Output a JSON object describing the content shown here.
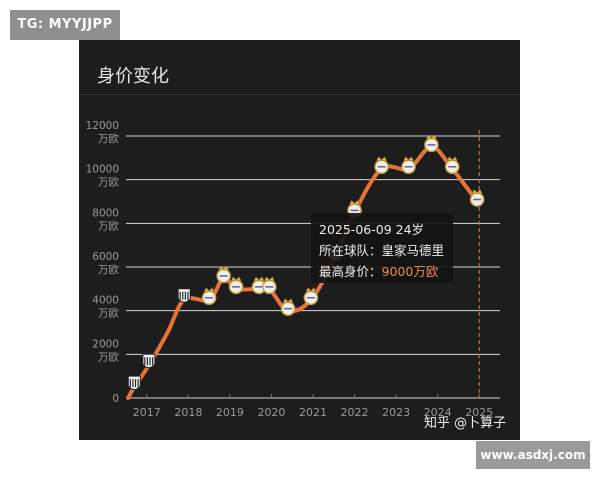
{
  "badges": {
    "tg": "TG: MYYJJPP",
    "site": "www.asdxj.com"
  },
  "panel": {
    "title": "身价变化",
    "watermark": "知乎 @卜算子"
  },
  "colors": {
    "background": "#1d1d1d",
    "line": "#e8733a",
    "grid": "#d8d8d8",
    "marker_line": "#d9795a",
    "accent_text": "#f08a4b"
  },
  "chart_data": {
    "type": "line",
    "unit": "万欧",
    "ylim": [
      0,
      12000
    ],
    "y_ticks": [
      {
        "value": 0,
        "label": "0",
        "unit": ""
      },
      {
        "value": 2000,
        "label": "2000",
        "unit": "万欧"
      },
      {
        "value": 4000,
        "label": "4000",
        "unit": "万欧"
      },
      {
        "value": 6000,
        "label": "6000",
        "unit": "万欧"
      },
      {
        "value": 8000,
        "label": "8000",
        "unit": "万欧"
      },
      {
        "value": 10000,
        "label": "10000",
        "unit": "万欧"
      },
      {
        "value": 12000,
        "label": "12000",
        "unit": "万欧"
      }
    ],
    "x_labels": [
      "2017",
      "2018",
      "2019",
      "2020",
      "2021",
      "2022",
      "2023",
      "2024",
      "2025"
    ],
    "xlim": [
      2016.5,
      2025.5
    ],
    "grid": true,
    "series": [
      {
        "points": [
          {
            "x": 2016.55,
            "y": 0
          },
          {
            "x": 2016.7,
            "y": 500,
            "club": "santos"
          },
          {
            "x": 2017.05,
            "y": 1500,
            "club": "santos"
          },
          {
            "x": 2017.5,
            "y": 3000
          },
          {
            "x": 2017.9,
            "y": 4500,
            "club": "santos"
          },
          {
            "x": 2018.5,
            "y": 4500,
            "club": "real-madrid"
          },
          {
            "x": 2018.85,
            "y": 5500,
            "club": "real-madrid"
          },
          {
            "x": 2019.15,
            "y": 5000,
            "club": "real-madrid"
          },
          {
            "x": 2019.7,
            "y": 5000,
            "club": "real-madrid"
          },
          {
            "x": 2019.95,
            "y": 5000,
            "club": "real-madrid"
          },
          {
            "x": 2020.4,
            "y": 4000,
            "club": "real-madrid"
          },
          {
            "x": 2020.95,
            "y": 4500,
            "club": "real-madrid"
          },
          {
            "x": 2021.55,
            "y": 6500,
            "club": "real-madrid"
          },
          {
            "x": 2022.0,
            "y": 8500,
            "club": "real-madrid"
          },
          {
            "x": 2022.65,
            "y": 10500,
            "club": "real-madrid"
          },
          {
            "x": 2023.3,
            "y": 10500,
            "club": "real-madrid"
          },
          {
            "x": 2023.85,
            "y": 11500,
            "club": "real-madrid"
          },
          {
            "x": 2024.35,
            "y": 10500,
            "club": "real-madrid"
          },
          {
            "x": 2024.95,
            "y": 9000,
            "club": "real-madrid"
          }
        ]
      }
    ],
    "highlight_x": 2025.0,
    "tooltip": {
      "date_line": "2025-06-09 24岁",
      "club_label": "所在球队：",
      "club_value": "皇家马德里",
      "value_label": "最高身价：",
      "value_value": "9000万欧"
    }
  }
}
